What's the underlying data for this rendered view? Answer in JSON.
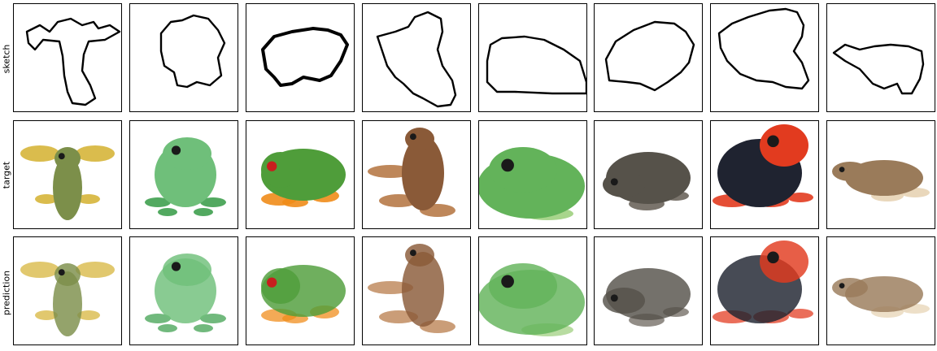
{
  "figure": {
    "rows": [
      {
        "label": "sketch"
      },
      {
        "label": "target"
      },
      {
        "label": "prediction"
      }
    ],
    "columns": [
      {
        "subject": "yellow-green-frog-top-view",
        "body_color": "#7c8f4a",
        "accent_color": "#d6b53a"
      },
      {
        "subject": "light-green-tree-frog",
        "body_color": "#6fbf7a",
        "accent_color": "#3fa04f"
      },
      {
        "subject": "red-eyed-tree-frog",
        "body_color": "#4f9d3a",
        "accent_color": "#f08c1a"
      },
      {
        "subject": "brown-toad-climbing",
        "body_color": "#8a5a38",
        "accent_color": "#b77a48"
      },
      {
        "subject": "green-frog-face",
        "body_color": "#63b35a",
        "accent_color": "#9fd07f"
      },
      {
        "subject": "gray-toad",
        "body_color": "#56524a",
        "accent_color": "#6b655c"
      },
      {
        "subject": "blue-red-poison-frog",
        "body_color": "#1f2330",
        "accent_color": "#e23b1f"
      },
      {
        "subject": "tan-frog-side-view",
        "body_color": "#9a7b5a",
        "accent_color": "#e7d3b4"
      }
    ]
  }
}
